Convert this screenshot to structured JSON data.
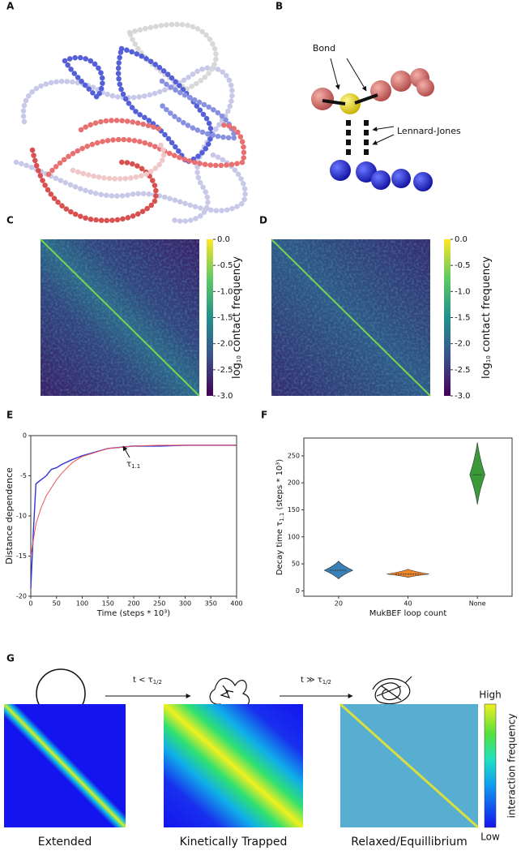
{
  "panel_labels": [
    "A",
    "B",
    "C",
    "D",
    "E",
    "F",
    "G"
  ],
  "panel_b": {
    "bond": "Bond",
    "lj": "Lennard-Jones"
  },
  "panel_g": {
    "arrow1": {
      "text": "t < τ",
      "sub": "1/2"
    },
    "arrow2": {
      "text": "t ≫ τ",
      "sub": "1/2"
    },
    "maps": [
      "Extended",
      "Kinetically Trapped",
      "Relaxed/Equillibrium"
    ],
    "colorbar": {
      "high": "High",
      "low": "Low",
      "label": "interaction frequency"
    }
  },
  "chart_data": [
    {
      "type": "heatmap",
      "clim": [
        -3,
        0
      ],
      "colorbar_ticks": [
        {
          "value": 0,
          "label": "0.0"
        },
        {
          "value": -0.5,
          "label": "-0.5"
        },
        {
          "value": -1,
          "label": "-1.0"
        },
        {
          "value": -1.5,
          "label": "-1.5"
        },
        {
          "value": -2,
          "label": "-2.0"
        },
        {
          "value": -2.5,
          "label": "-2.5"
        },
        {
          "value": -3,
          "label": "-3.0"
        }
      ],
      "colorbar_label": {
        "text": "log",
        "sub": "10",
        "rest": " contact frequency"
      }
    },
    {
      "type": "heatmap",
      "clim": [
        -3,
        0
      ],
      "colorbar_ticks": [
        {
          "value": 0,
          "label": "0.0"
        },
        {
          "value": -0.5,
          "label": "-0.5"
        },
        {
          "value": -1,
          "label": "-1.0"
        },
        {
          "value": -1.5,
          "label": "-1.5"
        },
        {
          "value": -2,
          "label": "-2.0"
        },
        {
          "value": -2.5,
          "label": "-2.5"
        },
        {
          "value": -3,
          "label": "-3.0"
        }
      ],
      "colorbar_label": {
        "text": "log",
        "sub": "10",
        "rest": " contact frequency"
      }
    },
    {
      "type": "line",
      "xlabel": "Time (steps * 10³)",
      "ylabel": "Distance dependence",
      "annotation": {
        "text": "τ",
        "sub": "1.1"
      },
      "x": [
        0,
        5,
        10,
        20,
        30,
        40,
        50,
        60,
        80,
        100,
        150,
        200,
        250,
        300,
        350,
        400
      ],
      "series": [
        {
          "color": "#3333dd",
          "values": [
            -19,
            -12,
            -6,
            -5.5,
            -5,
            -4.2,
            -4,
            -3.6,
            -3,
            -2.5,
            -1.6,
            -1.3,
            -1.3,
            -1.2,
            -1.2,
            -1.2
          ]
        },
        {
          "color": "#ee5555",
          "values": [
            -15,
            -13,
            -11,
            -9,
            -7.5,
            -6.5,
            -5.5,
            -4.7,
            -3.4,
            -2.6,
            -1.6,
            -1.3,
            -1.2,
            -1.2,
            -1.2,
            -1.2
          ]
        }
      ],
      "xlim": [
        0,
        400
      ],
      "xticks": [
        0,
        50,
        100,
        150,
        200,
        250,
        300,
        350,
        400
      ],
      "ylim": [
        -20,
        0
      ],
      "yticks": [
        0,
        -5,
        -10,
        -15,
        -20
      ]
    },
    {
      "type": "violin",
      "xlabel": "MukBEF loop count",
      "ylabel": {
        "text": "Decay time τ",
        "sub": "1.1",
        "rest": "  (steps * 10³)"
      },
      "categories": [
        "20",
        "40",
        "None"
      ],
      "values": [
        38,
        31,
        215
      ],
      "ranges": [
        [
          22,
          55
        ],
        [
          25,
          40
        ],
        [
          160,
          275
        ]
      ],
      "colors": [
        "#3a7fb5",
        "#f0882a",
        "#3a9a3a"
      ],
      "ylim": [
        -10,
        283
      ],
      "yticks": [
        0,
        50,
        100,
        150,
        200,
        250
      ]
    }
  ]
}
